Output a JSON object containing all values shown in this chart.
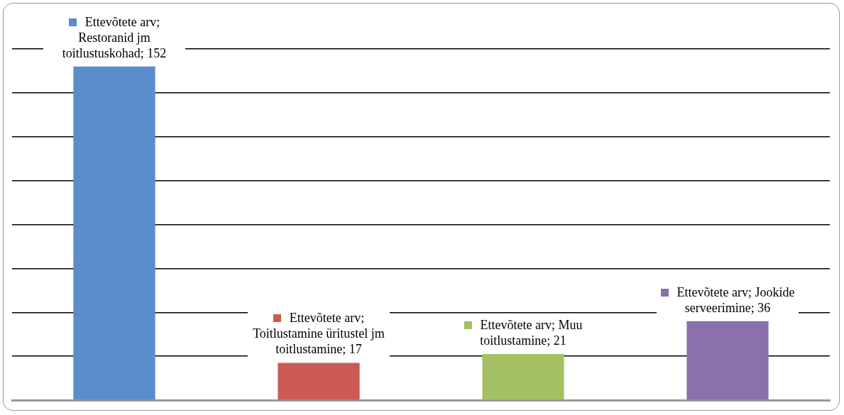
{
  "chart_data": {
    "type": "bar",
    "categories": [
      null,
      null,
      null,
      null
    ],
    "values": [
      152,
      17,
      21,
      36
    ],
    "colors": [
      "#5b8ccb",
      "#cb5a55",
      "#a3c163",
      "#8a70ad"
    ],
    "value_labels": [
      "Ettevõtete arv; Restoranid jm toitlustuskohad; 152",
      "Ettevõtete arv; Toitlustamine üritustel jm toitlustamine; 17",
      "Ettevõtete arv; Muu toitlustamine; 21",
      "Ettevõtete arv; Jookide serveerimine; 36"
    ],
    "ylim": [
      0,
      160
    ],
    "yticks": [
      {
        "value": 0,
        "label": null
      },
      {
        "value": 20,
        "label": null
      },
      {
        "value": 40,
        "label": null
      },
      {
        "value": 60,
        "label": null
      },
      {
        "value": 80,
        "label": null
      },
      {
        "value": 100,
        "label": null
      },
      {
        "value": 120,
        "label": null
      },
      {
        "value": 140,
        "label": null
      },
      {
        "value": 160,
        "label": null
      }
    ],
    "grid": "y",
    "tick_labels": false,
    "legend": false
  }
}
